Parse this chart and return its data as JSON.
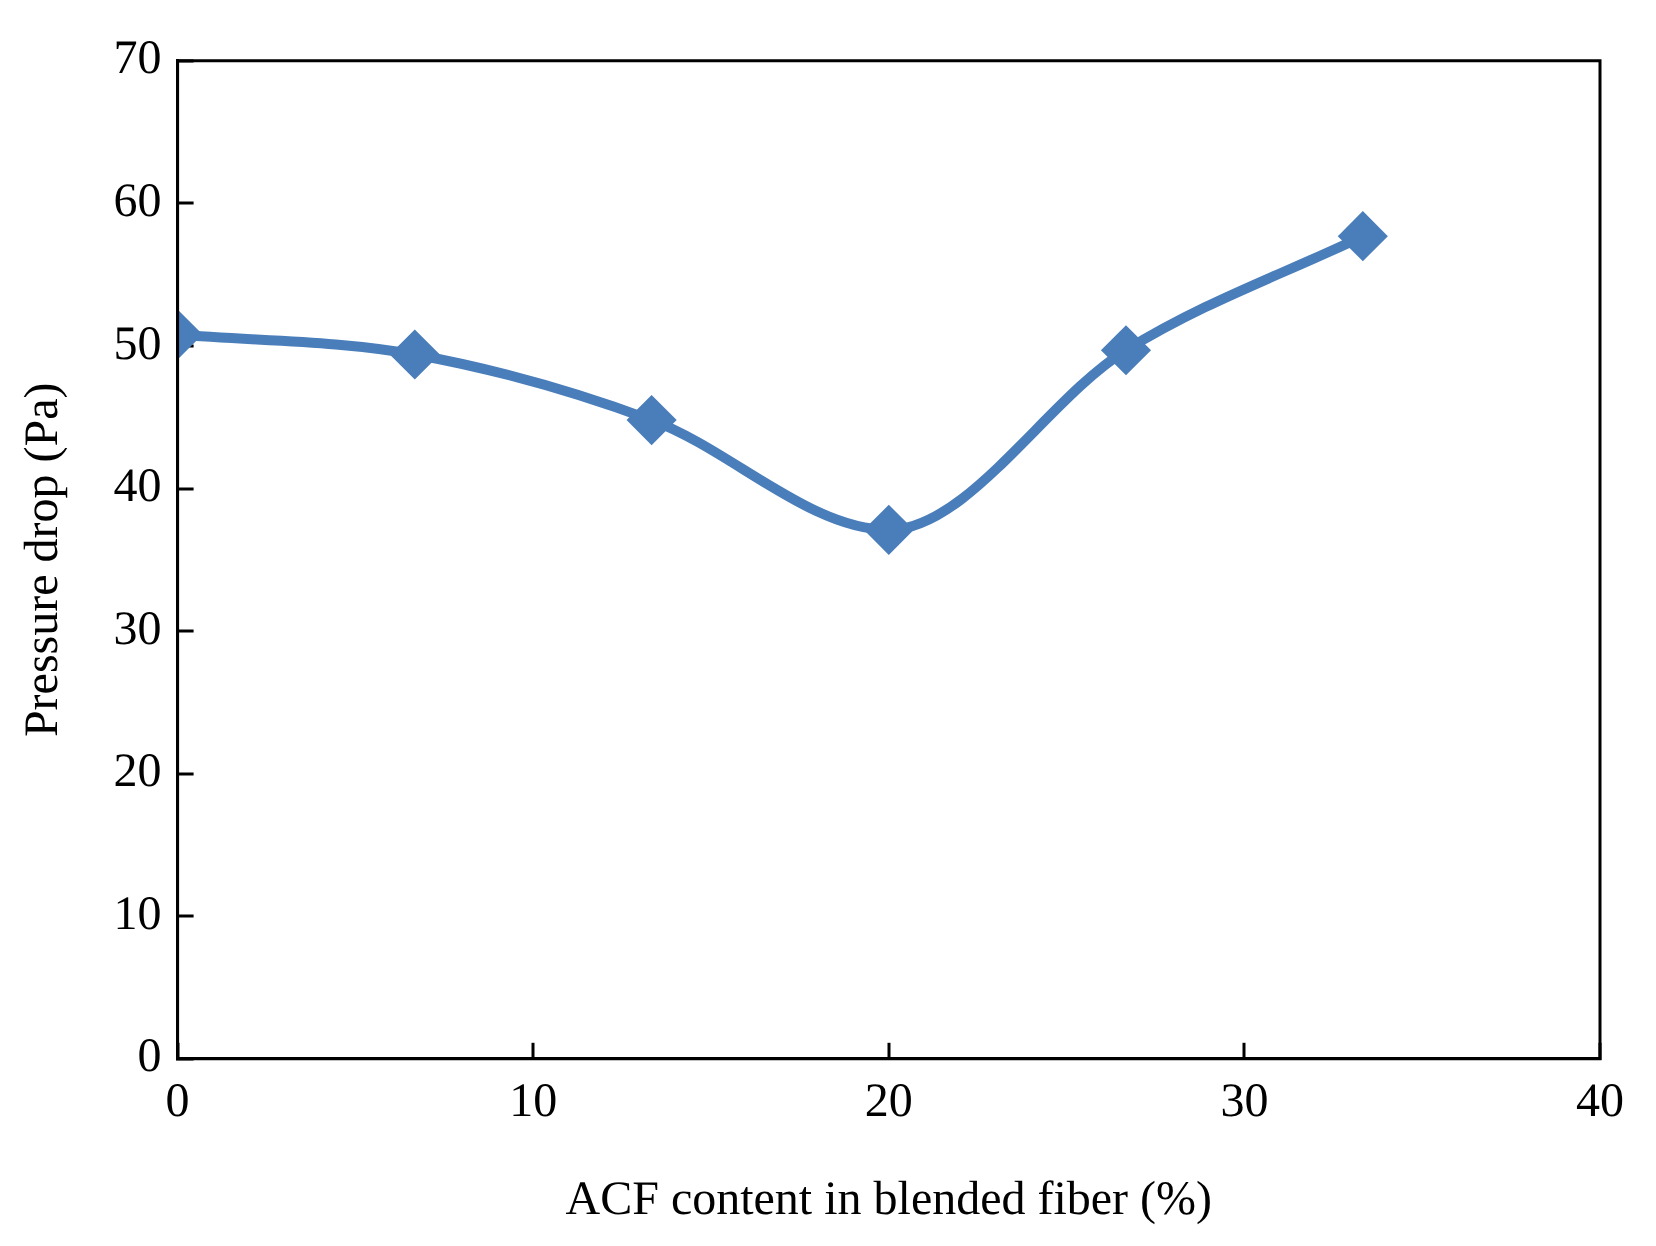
{
  "chart_data": {
    "type": "line",
    "xlabel": "ACF content in blended fiber (%)",
    "ylabel": "Pressure drop (Pa)",
    "x": [
      0,
      6.67,
      13.33,
      20,
      26.67,
      33.33
    ],
    "series": [
      {
        "color": "#4a7ebb",
        "values": [
          50.8,
          49.4,
          44.8,
          37.1,
          49.7,
          57.7
        ]
      }
    ],
    "xlim": [
      0,
      40
    ],
    "xticks": [
      0,
      10,
      20,
      30,
      40
    ],
    "ylim": [
      0,
      70
    ],
    "yticks": [
      0,
      10,
      20,
      30,
      40,
      50,
      60,
      70
    ],
    "grid": false,
    "legend": false,
    "marker": "diamond",
    "line_style": "solid"
  }
}
